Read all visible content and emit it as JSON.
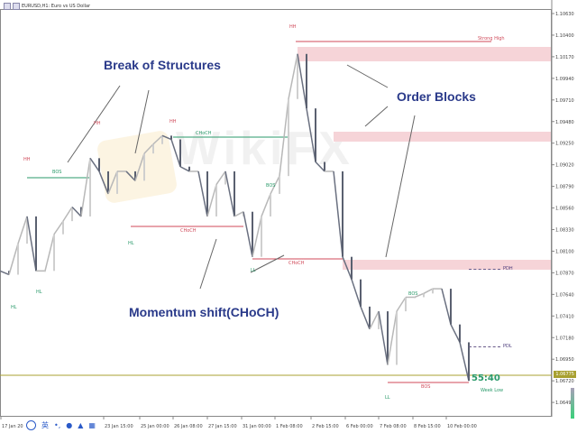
{
  "window": {
    "title": "EURUSD,H1: Euro vs US Dollar"
  },
  "chart_data": {
    "type": "line",
    "symbol": "EURUSD,H1",
    "y_ticks": [
      "1.10630",
      "1.10400",
      "1.10170",
      "1.09940",
      "1.09710",
      "1.09480",
      "1.09250",
      "1.09020",
      "1.08790",
      "1.08560",
      "1.08330",
      "1.08100",
      "1.07870",
      "1.07640",
      "1.07410",
      "1.07180",
      "1.06950",
      "1.06720",
      "1.06490"
    ],
    "ylim": [
      1.0645,
      1.1075
    ],
    "x_ticks": [
      "17 Jan 2022",
      "23 Jan 15:00",
      "25 Jan 00:00",
      "26 Jan 08:00",
      "27 Jan 15:00",
      "31 Jan 00:00",
      "1 Feb 08:00",
      "2 Feb 15:00",
      "6 Feb 00:00",
      "7 Feb 08:00",
      "8 Feb 15:00",
      "10 Feb 00:00"
    ],
    "series": [
      {
        "values": [
          1.0789,
          1.0785,
          1.0818,
          1.0847,
          1.0789,
          1.0789,
          1.0828,
          1.0842,
          1.0857,
          1.0847,
          1.0909,
          1.0895,
          1.0871,
          1.0895,
          1.0895,
          1.0885,
          1.0914,
          1.0924,
          1.0933,
          1.0929,
          1.09,
          1.0895,
          1.0895,
          1.0847,
          1.0881,
          1.0895,
          1.0847,
          1.0852,
          1.0804,
          1.0847,
          1.0871,
          1.089,
          1.0972,
          1.102,
          1.0962,
          1.0905,
          1.0895,
          1.0895,
          1.0804,
          1.078,
          1.0751,
          1.0727,
          1.0746,
          1.0689,
          1.0746,
          1.0761,
          1.0761,
          1.0765,
          1.077,
          1.077,
          1.0732,
          1.0713,
          1.0672
        ]
      }
    ],
    "current_price": "1.06775",
    "grid": false
  },
  "annotations": {
    "break_of_structures": "Break of Structures",
    "order_blocks": "Order Blocks",
    "momentum_shift": "Momentum shift(CHoCH)",
    "strong_high": "Strong High",
    "week_low": "Week Low",
    "pdh": "PDH",
    "pdl": "PDL",
    "timer": "55:40",
    "hh": "HH",
    "hl": "HL",
    "ll": "LL",
    "bos": "BOS",
    "choch": "CHoCH"
  },
  "watermark": "WikiFX",
  "ime_toolbar": {
    "lang": "英"
  },
  "colors": {
    "bull": "#2a9a6a",
    "bear": "#d04a5a",
    "order_block": "#f6d4d8",
    "price_line": "#a8a030",
    "annotation": "#2a3a8a"
  }
}
